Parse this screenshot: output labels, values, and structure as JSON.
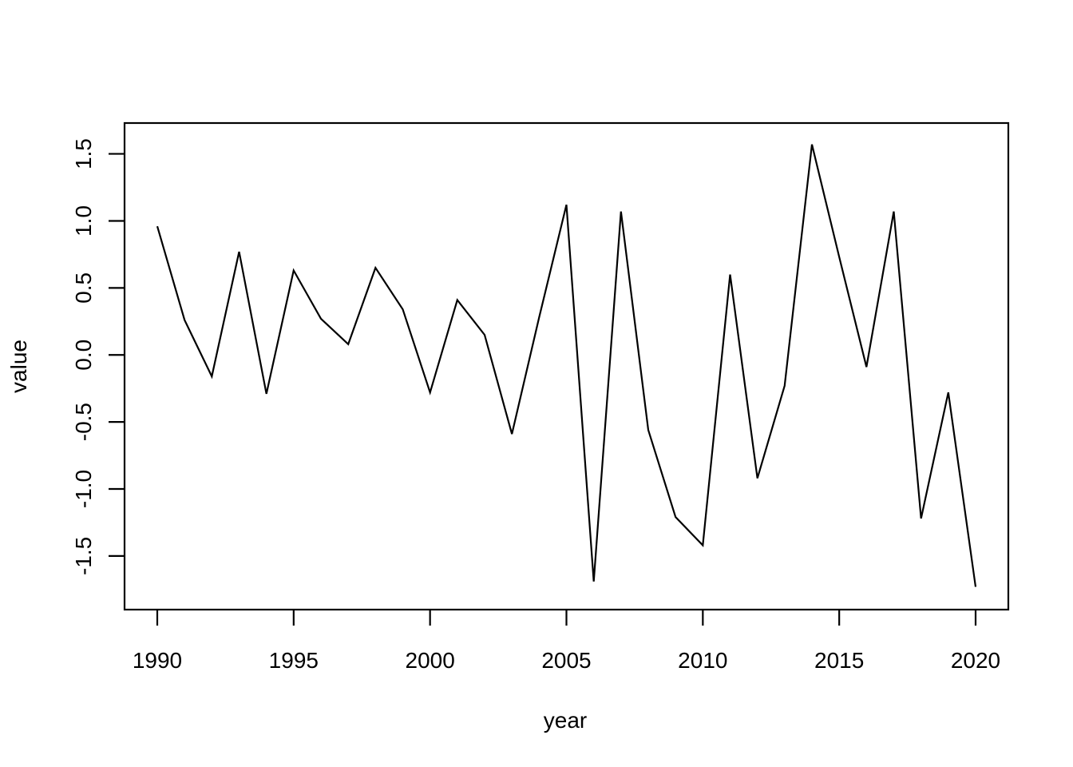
{
  "chart_data": {
    "type": "line",
    "title": "",
    "xlabel": "year",
    "ylabel": "value",
    "x": [
      1990,
      1991,
      1992,
      1993,
      1994,
      1995,
      1996,
      1997,
      1998,
      1999,
      2000,
      2001,
      2002,
      2003,
      2004,
      2005,
      2006,
      2007,
      2008,
      2009,
      2010,
      2011,
      2012,
      2013,
      2014,
      2015,
      2016,
      2017,
      2018,
      2019,
      2020
    ],
    "series": [
      {
        "name": "value",
        "values": [
          0.96,
          0.26,
          -0.16,
          0.77,
          -0.29,
          0.63,
          0.27,
          0.08,
          0.65,
          0.34,
          -0.28,
          0.41,
          0.15,
          -0.59,
          0.28,
          1.12,
          -1.69,
          1.07,
          -0.56,
          -1.21,
          -1.42,
          0.6,
          -0.92,
          -0.23,
          1.57,
          0.73,
          -0.09,
          1.07,
          -1.22,
          -0.28,
          -1.73
        ]
      }
    ],
    "xlim": [
      1988.8,
      2021.2
    ],
    "ylim": [
      -1.9,
      1.73
    ],
    "xticks": {
      "values": [
        1990,
        1995,
        2000,
        2005,
        2010,
        2015,
        2020
      ],
      "labels": [
        "1990",
        "1995",
        "2000",
        "2005",
        "2010",
        "2015",
        "2020"
      ]
    },
    "yticks": {
      "values": [
        -1.5,
        -1.0,
        -0.5,
        0.0,
        0.5,
        1.0,
        1.5
      ],
      "labels": [
        "-1.5",
        "-1.0",
        "-0.5",
        "0.0",
        "0.5",
        "1.0",
        "1.5"
      ]
    },
    "grid": false,
    "legend": null,
    "line_color": "#000000",
    "axis_color": "#000000",
    "background_color": "#ffffff"
  }
}
